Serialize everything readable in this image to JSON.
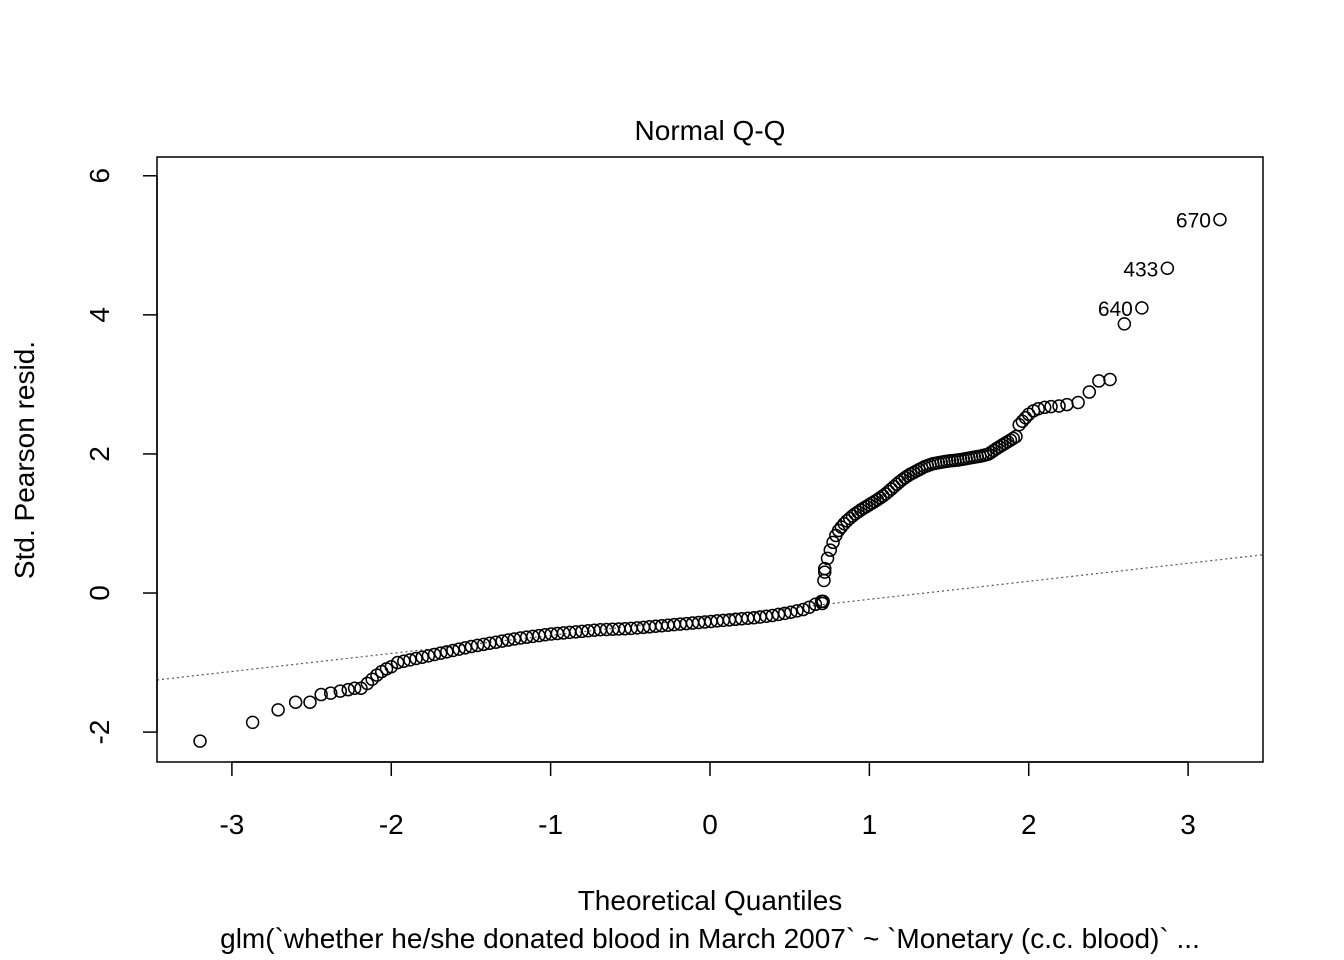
{
  "chart_data": {
    "type": "scatter",
    "title": "Normal Q-Q",
    "xlabel": "Theoretical Quantiles",
    "ylabel": "Std. Pearson resid.",
    "subtitle": "glm(`whether he/she donated blood in March 2007` ~ `Monetary (c.c. blood)`  ...",
    "xlim": [
      -3.47,
      3.47
    ],
    "ylim": [
      -2.43,
      6.27
    ],
    "x_ticks": [
      -3,
      -2,
      -1,
      0,
      1,
      2,
      3
    ],
    "y_ticks": [
      -2,
      0,
      2,
      4,
      6
    ],
    "grid": false,
    "reference_line": {
      "x": [
        -3.47,
        3.47
      ],
      "y": [
        -1.25,
        0.55
      ]
    },
    "labeled_points": [
      {
        "label": "670",
        "x": 3.2,
        "y": 5.37
      },
      {
        "label": "433",
        "x": 2.87,
        "y": 4.67
      },
      {
        "label": "640",
        "x": 2.71,
        "y": 4.1
      }
    ],
    "curve_segments": [
      {
        "x": [
          -1.96,
          -1.9,
          -1.8,
          -1.7,
          -1.6,
          -1.5,
          -1.4,
          -1.3,
          -1.2,
          -1.1,
          -1.0,
          -0.9,
          -0.8,
          -0.7,
          -0.6,
          -0.5,
          -0.4,
          -0.3,
          -0.2,
          -0.1,
          0.0,
          0.1,
          0.2,
          0.3,
          0.4,
          0.5,
          0.6,
          0.7
        ],
        "y": [
          -1.0,
          -0.97,
          -0.92,
          -0.87,
          -0.82,
          -0.77,
          -0.73,
          -0.69,
          -0.65,
          -0.62,
          -0.59,
          -0.57,
          -0.55,
          -0.53,
          -0.52,
          -0.51,
          -0.49,
          -0.47,
          -0.45,
          -0.43,
          -0.41,
          -0.39,
          -0.37,
          -0.35,
          -0.32,
          -0.28,
          -0.23,
          -0.12
        ]
      },
      {
        "x": [
          0.72,
          0.74,
          0.76,
          0.78,
          0.8,
          0.85,
          0.9,
          0.95,
          1.0,
          1.05,
          1.1,
          1.15,
          1.2,
          1.25,
          1.3,
          1.35,
          1.4,
          1.45,
          1.5,
          1.55,
          1.6,
          1.65,
          1.7,
          1.75,
          1.8,
          1.85,
          1.9,
          1.92
        ],
        "y": [
          0.35,
          0.52,
          0.65,
          0.78,
          0.88,
          1.02,
          1.12,
          1.2,
          1.27,
          1.34,
          1.42,
          1.52,
          1.62,
          1.7,
          1.76,
          1.82,
          1.86,
          1.88,
          1.9,
          1.91,
          1.93,
          1.95,
          1.97,
          2.0,
          2.08,
          2.15,
          2.22,
          2.25
        ]
      }
    ],
    "points": {
      "x": [
        -3.2,
        -2.87,
        -2.71,
        -2.6,
        -2.51,
        -2.44,
        -2.38,
        -2.32,
        -2.27,
        -2.23,
        -2.19,
        -2.15,
        -2.12,
        -2.09,
        -2.06,
        -2.03,
        -2.0,
        0.705,
        0.71,
        0.715,
        0.72,
        1.94,
        1.96,
        1.98,
        2.0,
        2.03,
        2.06,
        2.1,
        2.14,
        2.19,
        2.24,
        2.31,
        2.38,
        2.44,
        2.51,
        2.6
      ],
      "y": [
        -2.13,
        -1.86,
        -1.68,
        -1.57,
        -1.57,
        -1.46,
        -1.44,
        -1.41,
        -1.39,
        -1.37,
        -1.37,
        -1.3,
        -1.24,
        -1.18,
        -1.13,
        -1.09,
        -1.06,
        -0.15,
        -0.12,
        0.18,
        0.3,
        2.42,
        2.47,
        2.52,
        2.57,
        2.62,
        2.65,
        2.67,
        2.68,
        2.69,
        2.71,
        2.74,
        2.89,
        3.05,
        3.07,
        3.87
      ]
    }
  }
}
